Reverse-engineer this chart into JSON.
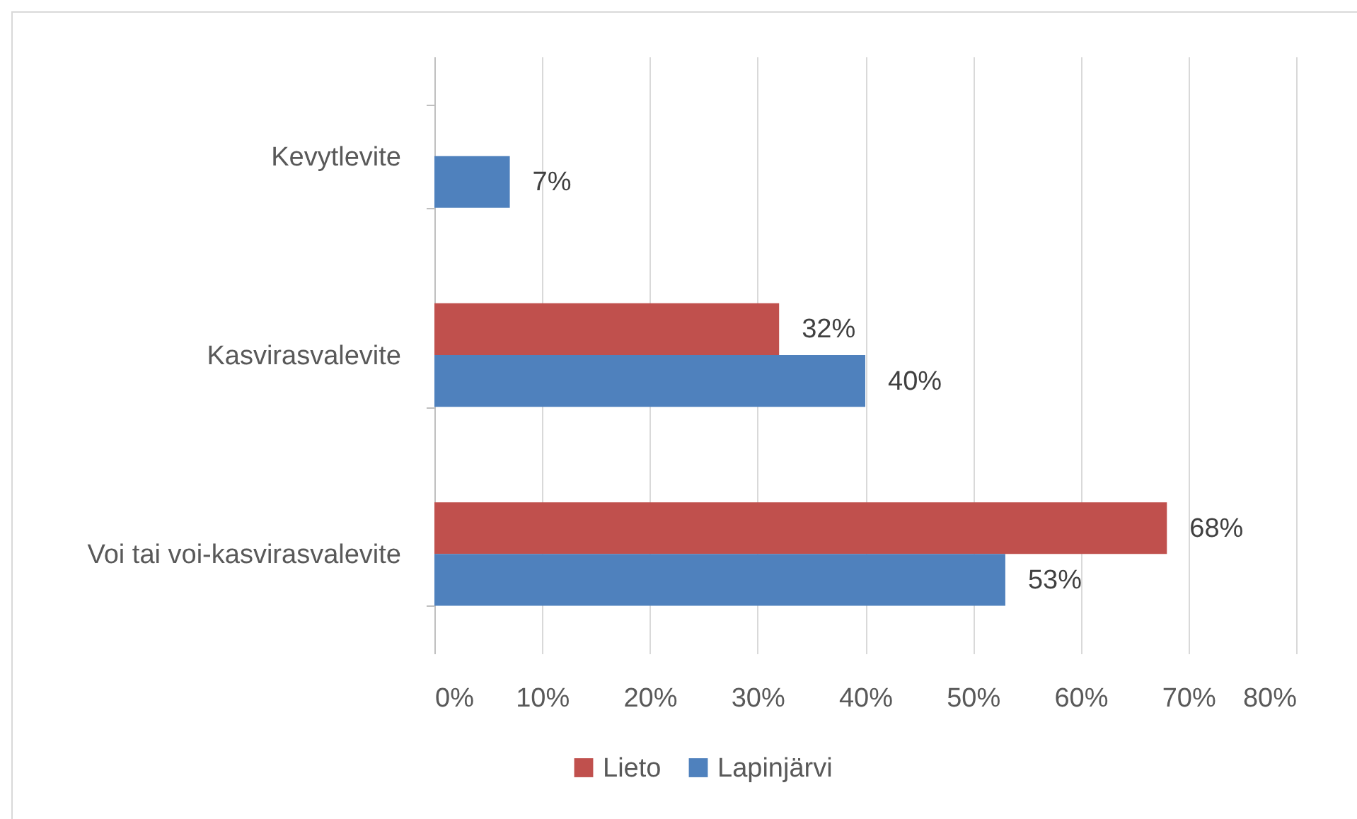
{
  "chart_data": {
    "type": "bar",
    "orientation": "horizontal",
    "categories": [
      "Kevytlevite",
      "Kasvirasvalevite",
      "Voi tai voi-kasvirasvalevite"
    ],
    "series": [
      {
        "name": "Lieto",
        "color": "#c0504d",
        "values": [
          null,
          32,
          68
        ],
        "value_labels": [
          null,
          "32%",
          "68%"
        ]
      },
      {
        "name": "Lapinjärvi",
        "color": "#4f81bd",
        "values": [
          7,
          40,
          53
        ],
        "value_labels": [
          "7%",
          "40%",
          "53%"
        ]
      }
    ],
    "xlim": [
      0,
      80
    ],
    "xticks": [
      {
        "value": 0,
        "label": "0%"
      },
      {
        "value": 10,
        "label": "10%"
      },
      {
        "value": 20,
        "label": "20%"
      },
      {
        "value": 30,
        "label": "30%"
      },
      {
        "value": 40,
        "label": "40%"
      },
      {
        "value": 50,
        "label": "50%"
      },
      {
        "value": 60,
        "label": "60%"
      },
      {
        "value": 70,
        "label": "70%"
      },
      {
        "value": 80,
        "label": "80%"
      }
    ],
    "grid": "x",
    "legend": "bottom"
  }
}
